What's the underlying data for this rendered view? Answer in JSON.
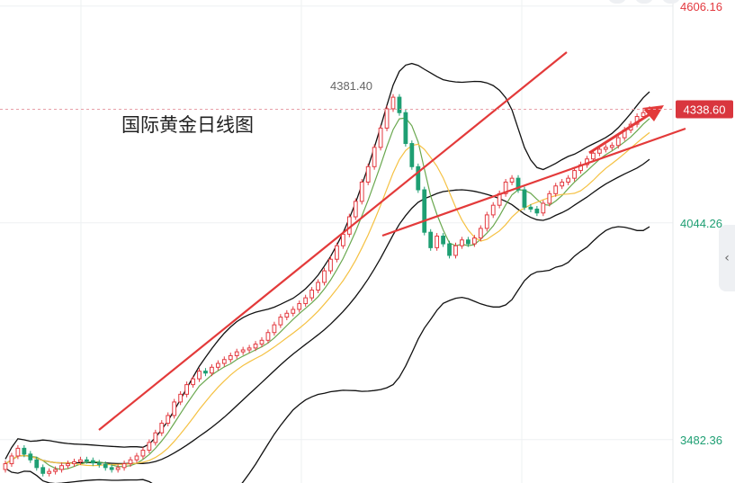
{
  "title": "国际黄金日线图",
  "last_price_label": "4338.60",
  "high_label": "4381.40",
  "colors": {
    "up": "#e3393f",
    "down": "#1e9f73",
    "ma5": "#6aa84f",
    "ma10": "#f5c142",
    "band": "#111111",
    "trend": "#e33a3a",
    "axis_up": "#e3393f",
    "axis_down": "#1e9f73"
  },
  "chart_data": {
    "type": "candlestick",
    "title": "国际黄金日线图",
    "y_ticks": [
      {
        "label": "4606.16",
        "value": 4606.16,
        "color": "up"
      },
      {
        "label": "4044.26",
        "value": 4044.26,
        "color": "down"
      },
      {
        "label": "3482.36",
        "value": 3482.36,
        "color": "down"
      }
    ],
    "ylim": [
      3370,
      4622
    ],
    "last_price": 4338.6,
    "high_marker": 4381.4,
    "grid": true,
    "close": [
      3420,
      3440,
      3460,
      3445,
      3430,
      3410,
      3395,
      3400,
      3405,
      3415,
      3420,
      3425,
      3430,
      3428,
      3422,
      3418,
      3410,
      3405,
      3410,
      3420,
      3430,
      3440,
      3455,
      3475,
      3500,
      3525,
      3545,
      3580,
      3600,
      3625,
      3640,
      3660,
      3655,
      3670,
      3680,
      3690,
      3700,
      3710,
      3715,
      3720,
      3730,
      3740,
      3760,
      3780,
      3800,
      3810,
      3820,
      3835,
      3850,
      3870,
      3890,
      3920,
      3950,
      3985,
      4015,
      4060,
      4100,
      4150,
      4190,
      4240,
      4290,
      4340,
      4370,
      4330,
      4250,
      4190,
      4130,
      4020,
      3980,
      4010,
      3990,
      3960,
      3985,
      4000,
      3990,
      4005,
      4030,
      4065,
      4090,
      4120,
      4150,
      4160,
      4130,
      4085,
      4080,
      4070,
      4095,
      4120,
      4140,
      4150,
      4160,
      4180,
      4195,
      4210,
      4225,
      4235,
      4240,
      4245,
      4265,
      4285,
      4300,
      4320,
      4330,
      4338.6
    ],
    "open": [
      3405,
      3420,
      3440,
      3460,
      3445,
      3430,
      3410,
      3395,
      3400,
      3405,
      3415,
      3420,
      3425,
      3430,
      3428,
      3422,
      3418,
      3410,
      3405,
      3410,
      3420,
      3430,
      3440,
      3455,
      3475,
      3500,
      3525,
      3545,
      3580,
      3600,
      3625,
      3640,
      3660,
      3655,
      3670,
      3680,
      3690,
      3700,
      3710,
      3715,
      3720,
      3730,
      3740,
      3760,
      3780,
      3800,
      3810,
      3820,
      3835,
      3850,
      3870,
      3890,
      3920,
      3950,
      3985,
      4015,
      4060,
      4100,
      4150,
      4190,
      4240,
      4290,
      4340,
      4370,
      4330,
      4250,
      4190,
      4130,
      4020,
      3980,
      4010,
      3990,
      3960,
      3985,
      4000,
      3990,
      4005,
      4030,
      4065,
      4090,
      4120,
      4150,
      4160,
      4130,
      4085,
      4080,
      4070,
      4095,
      4120,
      4140,
      4150,
      4160,
      4180,
      4195,
      4210,
      4225,
      4235,
      4240,
      4245,
      4265,
      4285,
      4300,
      4320,
      4330
    ]
  }
}
